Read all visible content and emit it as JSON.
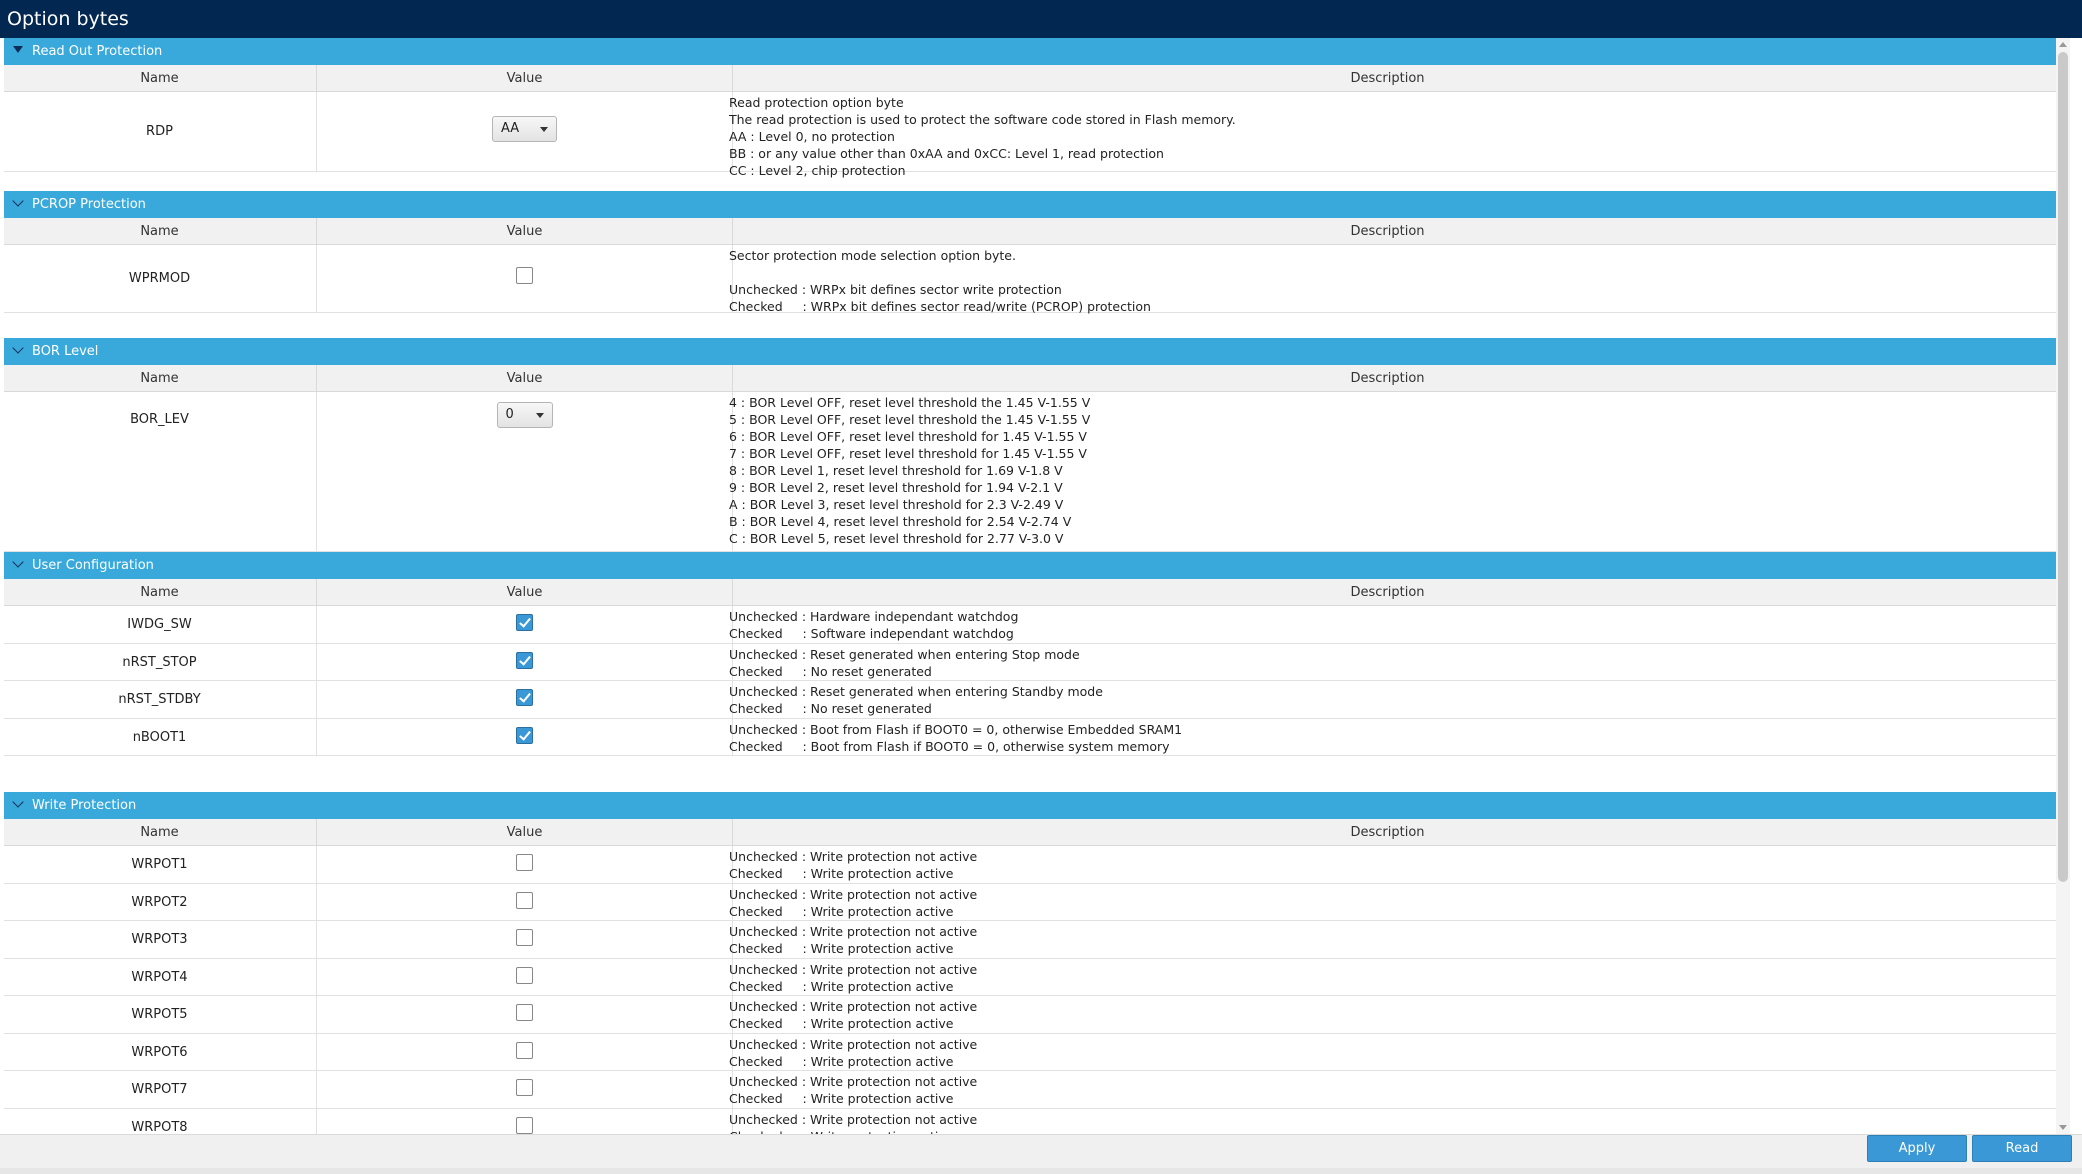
{
  "window": {
    "title": "Option bytes"
  },
  "columns": {
    "name": "Name",
    "value": "Value",
    "description": "Description"
  },
  "sections": {
    "rop": {
      "title": "Read Out Protection",
      "rows": [
        {
          "name": "RDP",
          "value": "AA",
          "control": "combo",
          "description": "Read protection option byte\nThe read protection is used to protect the software code stored in Flash memory.\nAA : Level 0, no protection\nBB : or any value other than 0xAA and 0xCC: Level 1, read protection\nCC : Level 2, chip protection"
        }
      ]
    },
    "pcrop": {
      "title": "PCROP Protection",
      "rows": [
        {
          "name": "WPRMOD",
          "checked": false,
          "control": "checkbox",
          "description": "Sector protection mode selection option byte.\n\nUnchecked : WRPx bit defines sector write protection\nChecked     : WRPx bit defines sector read/write (PCROP) protection"
        }
      ]
    },
    "bor": {
      "title": "BOR Level",
      "rows": [
        {
          "name": "BOR_LEV",
          "value": "0",
          "control": "combo",
          "description": "4 : BOR Level OFF, reset level threshold the 1.45 V-1.55 V\n5 : BOR Level OFF, reset level threshold the 1.45 V-1.55 V\n6 : BOR Level OFF, reset level threshold for 1.45 V-1.55 V\n7 : BOR Level OFF, reset level threshold for 1.45 V-1.55 V\n8 : BOR Level 1, reset level threshold for 1.69 V-1.8 V\n9 : BOR Level 2, reset level threshold for 1.94 V-2.1 V\nA : BOR Level 3, reset level threshold for 2.3 V-2.49 V\nB : BOR Level 4, reset level threshold for 2.54 V-2.74 V\nC : BOR Level 5, reset level threshold for 2.77 V-3.0 V"
        }
      ]
    },
    "user": {
      "title": "User Configuration",
      "rows": [
        {
          "name": "IWDG_SW",
          "checked": true,
          "control": "checkbox",
          "description": "Unchecked : Hardware independant watchdog\nChecked     : Software independant watchdog"
        },
        {
          "name": "nRST_STOP",
          "checked": true,
          "control": "checkbox",
          "description": "Unchecked : Reset generated when entering Stop mode\nChecked     : No reset generated"
        },
        {
          "name": "nRST_STDBY",
          "checked": true,
          "control": "checkbox",
          "description": "Unchecked : Reset generated when entering Standby mode\nChecked     : No reset generated"
        },
        {
          "name": "nBOOT1",
          "checked": true,
          "control": "checkbox",
          "description": "Unchecked : Boot from Flash if BOOT0 = 0, otherwise Embedded SRAM1\nChecked     : Boot from Flash if BOOT0 = 0, otherwise system memory"
        }
      ]
    },
    "wp": {
      "title": "Write Protection",
      "rows": [
        {
          "name": "WRPOT1",
          "checked": false,
          "control": "checkbox",
          "description": "Unchecked : Write protection not active\nChecked     : Write protection active"
        },
        {
          "name": "WRPOT2",
          "checked": false,
          "control": "checkbox",
          "description": "Unchecked : Write protection not active\nChecked     : Write protection active"
        },
        {
          "name": "WRPOT3",
          "checked": false,
          "control": "checkbox",
          "description": "Unchecked : Write protection not active\nChecked     : Write protection active"
        },
        {
          "name": "WRPOT4",
          "checked": false,
          "control": "checkbox",
          "description": "Unchecked : Write protection not active\nChecked     : Write protection active"
        },
        {
          "name": "WRPOT5",
          "checked": false,
          "control": "checkbox",
          "description": "Unchecked : Write protection not active\nChecked     : Write protection active"
        },
        {
          "name": "WRPOT6",
          "checked": false,
          "control": "checkbox",
          "description": "Unchecked : Write protection not active\nChecked     : Write protection active"
        },
        {
          "name": "WRPOT7",
          "checked": false,
          "control": "checkbox",
          "description": "Unchecked : Write protection not active\nChecked     : Write protection active"
        },
        {
          "name": "WRPOT8",
          "checked": false,
          "control": "checkbox",
          "description": "Unchecked : Write protection not active\nChecked     : Write protection active"
        }
      ]
    }
  },
  "footer": {
    "apply_label": "Apply",
    "read_label": "Read"
  },
  "colors": {
    "titlebar": "#022750",
    "section_header": "#39a9dc",
    "button": "#3a98d6",
    "checkbox_checked": "#3a98d6"
  },
  "icons": {
    "section_toggle": "chevron-down-icon",
    "combo_arrow": "caret-down-icon",
    "checkmark": "check-icon"
  }
}
